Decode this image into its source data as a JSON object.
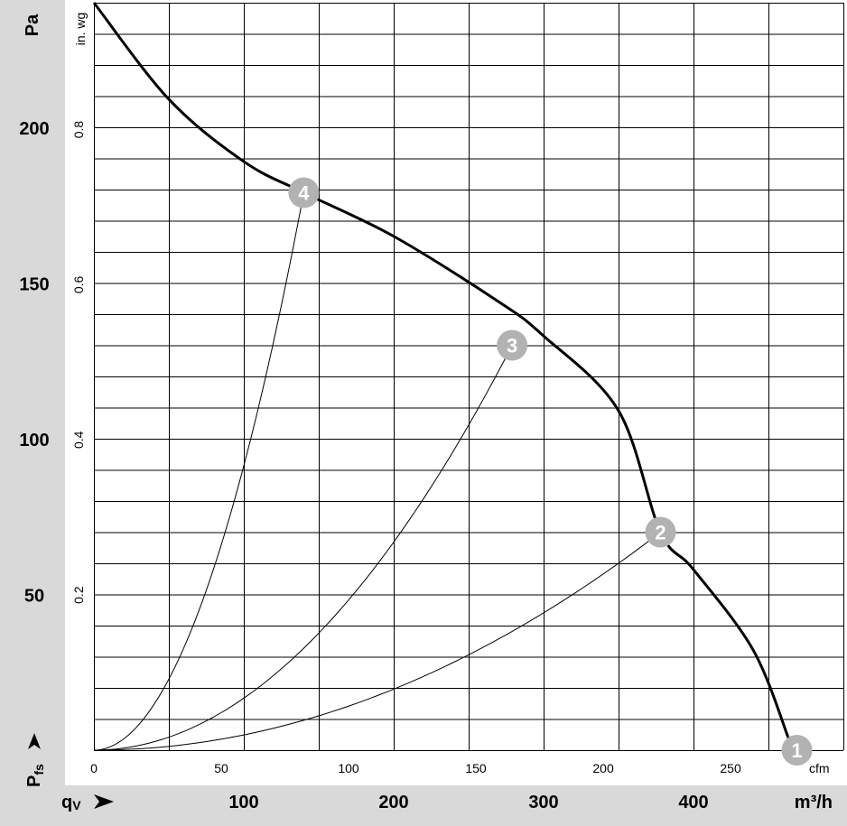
{
  "chart_data": {
    "type": "line",
    "title": "",
    "x_units": {
      "primary": "m³/h",
      "secondary": "cfm"
    },
    "y_units": {
      "primary": "Pa",
      "secondary": "in. wg"
    },
    "x_axis_symbol": {
      "main": "q",
      "sub": "V"
    },
    "y_axis_symbol": {
      "main": "P",
      "sub": "fs"
    },
    "xlim_m3h": [
      0,
      500
    ],
    "ylim_pa": [
      0,
      240
    ],
    "x_ticks_m3h": [
      "100",
      "200",
      "300",
      "400"
    ],
    "x_ticks_cfm": [
      "0",
      "50",
      "100",
      "150",
      "200",
      "250"
    ],
    "y_ticks_pa": [
      "50",
      "100",
      "150",
      "200"
    ],
    "y_ticks_inwg": [
      "0.2",
      "0.4",
      "0.6",
      "0.8"
    ],
    "grid": true,
    "series": [
      {
        "role": "fan-curve",
        "x": [
          0,
          50,
          100,
          140,
          200,
          270,
          300,
          350,
          378,
          400,
          440,
          464
        ],
        "y": [
          240,
          209,
          189,
          179,
          165,
          144,
          133,
          109,
          70,
          58,
          32,
          3
        ]
      },
      {
        "role": "system-curve",
        "point": "2",
        "x": [
          0,
          378
        ],
        "y": [
          0,
          70
        ]
      },
      {
        "role": "system-curve",
        "point": "3",
        "x": [
          0,
          279
        ],
        "y": [
          0,
          130
        ]
      },
      {
        "role": "system-curve",
        "point": "4",
        "x": [
          0,
          140
        ],
        "y": [
          0,
          179
        ]
      }
    ],
    "operating_points": [
      {
        "label": "1",
        "x": 469,
        "y": 0
      },
      {
        "label": "2",
        "x": 378,
        "y": 70
      },
      {
        "label": "3",
        "x": 279,
        "y": 130
      },
      {
        "label": "4",
        "x": 140,
        "y": 179
      }
    ],
    "colors": {
      "grid": "#000000",
      "fan_curve": "#000000",
      "system_curve": "#000000",
      "marker": "#b2b2b2",
      "marker_text": "#ffffff",
      "label_band": "#d9d9d9"
    }
  }
}
